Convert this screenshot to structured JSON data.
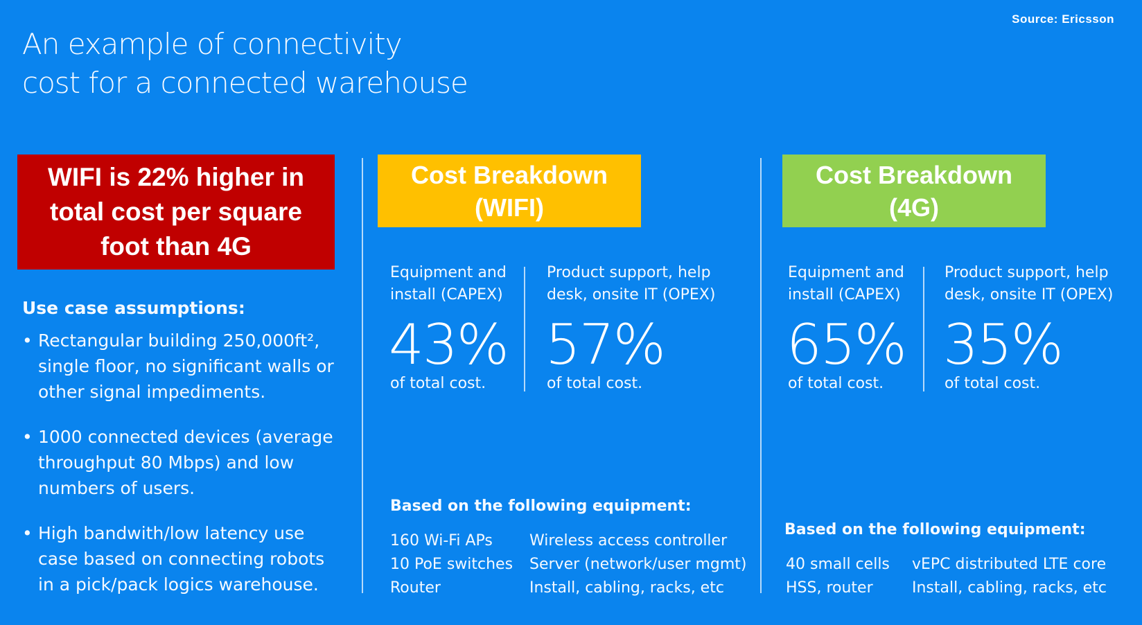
{
  "source": "Source: Ericsson",
  "title": {
    "line1": "An example of connectivity",
    "line2": "cost for a connected warehouse"
  },
  "headline": {
    "text": "WIFI is 22% higher in total cost per square foot than 4G",
    "color": "#c00000"
  },
  "assumptions": {
    "title": "Use case assumptions:",
    "items": [
      "Rectangular building 250,000ft², single floor, no significant walls or other signal impediments.",
      "1000 connected devices (average throughput 80 Mbps) and low numbers of users.",
      "High bandwith/low latency use case based on connecting robots in a pick/pack logics warehouse."
    ]
  },
  "wifi": {
    "box_line1": "Cost Breakdown",
    "box_line2": "(WIFI)",
    "box_color": "#ffc000",
    "capex": {
      "label_line1": "Equipment and",
      "label_line2": "install (CAPEX)",
      "value": "43%",
      "sub": "of total cost."
    },
    "opex": {
      "label_line1": "Product support, help",
      "label_line2": "desk, onsite IT (OPEX)",
      "value": "57%",
      "sub": "of total cost."
    },
    "equipment_title": "Based on the following equipment:",
    "equipment_left": [
      "160 Wi-Fi APs",
      "10 PoE switches",
      "Router"
    ],
    "equipment_right": [
      "Wireless access controller",
      "Server (network/user mgmt)",
      "Install, cabling, racks, etc"
    ]
  },
  "lte": {
    "box_line1": "Cost Breakdown",
    "box_line2": "(4G)",
    "box_color": "#92d050",
    "capex": {
      "label_line1": "Equipment and",
      "label_line2": "install (CAPEX)",
      "value": "65%",
      "sub": "of total cost."
    },
    "opex": {
      "label_line1": "Product support, help",
      "label_line2": "desk, onsite IT (OPEX)",
      "value": "35%",
      "sub": "of total cost."
    },
    "equipment_title": "Based on the following equipment:",
    "equipment_left": [
      "40 small cells",
      "HSS, router"
    ],
    "equipment_right": [
      "vEPC distributed LTE core",
      "Install, cabling, racks, etc"
    ]
  },
  "background_color": "#0a84ee"
}
